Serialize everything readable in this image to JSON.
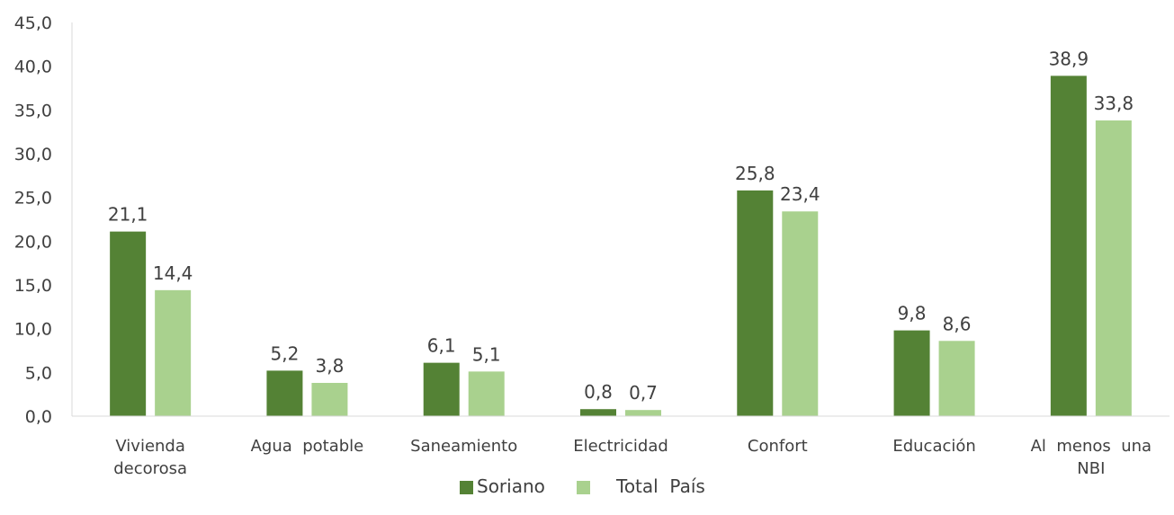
{
  "chart_data": {
    "type": "bar",
    "title": "",
    "xlabel": "",
    "ylabel": "",
    "categories": [
      [
        "Vivienda",
        "decorosa"
      ],
      [
        "Agua  potable"
      ],
      [
        "Saneamiento"
      ],
      [
        "Electricidad"
      ],
      [
        "Confort"
      ],
      [
        "Educación"
      ],
      [
        "Al  menos  una",
        "NBI"
      ]
    ],
    "series": [
      {
        "name": "Soriano",
        "color": "#548235",
        "values": [
          21.1,
          5.2,
          6.1,
          0.8,
          25.8,
          9.8,
          38.9
        ],
        "labels": [
          "21,1",
          "5,2",
          "6,1",
          "0,8",
          "25,8",
          "9,8",
          "38,9"
        ]
      },
      {
        "name": "Total  País",
        "color": "#a9d18e",
        "values": [
          14.4,
          3.8,
          5.1,
          0.7,
          23.4,
          8.6,
          33.8
        ],
        "labels": [
          "14,4",
          "3,8",
          "5,1",
          "0,7",
          "23,4",
          "8,6",
          "33,8"
        ]
      }
    ],
    "ylim": [
      0,
      45
    ],
    "yticks": [
      0,
      5,
      10,
      15,
      20,
      25,
      30,
      35,
      40,
      45
    ],
    "ytick_labels": [
      "0,0",
      "5,0",
      "10,0",
      "15,0",
      "20,0",
      "25,0",
      "30,0",
      "35,0",
      "40,0",
      "45,0"
    ],
    "grid": false,
    "legend_position": "bottom",
    "axis_color": "#d9d9d9"
  }
}
